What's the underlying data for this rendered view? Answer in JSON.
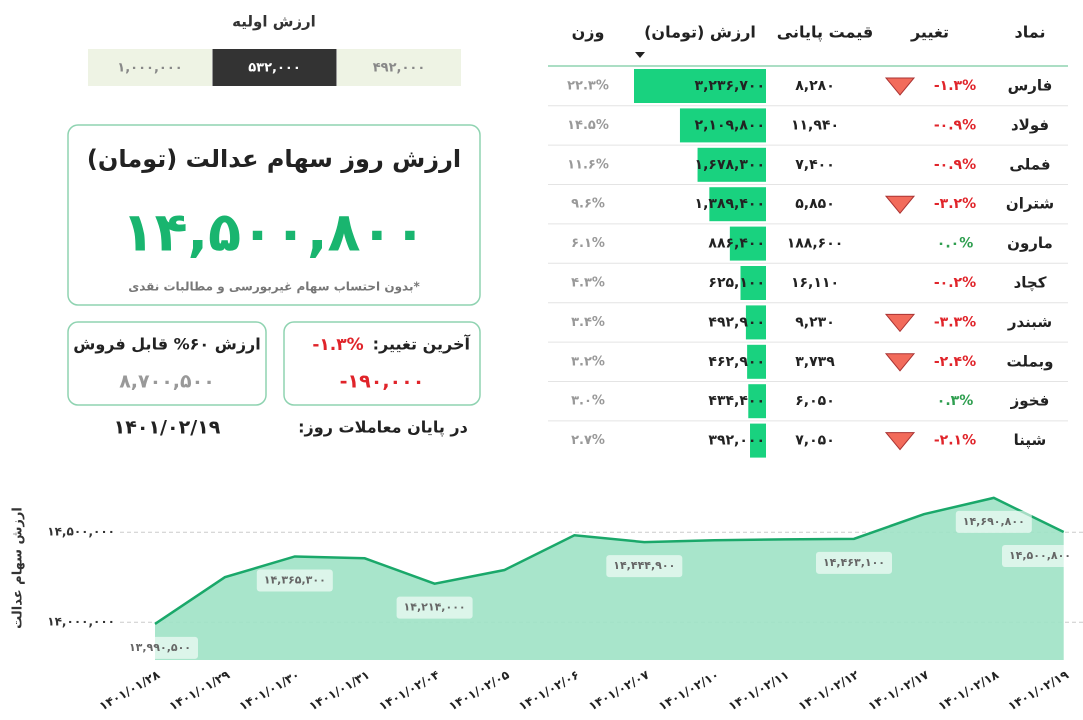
{
  "initial_value": {
    "label": "ارزش اولیه",
    "options": [
      "۱,۰۰۰,۰۰۰",
      "۵۳۲,۰۰۰",
      "۴۹۲,۰۰۰"
    ],
    "selected": 1
  },
  "summary": {
    "title": "ارزش روز سهام عدالت (تومان)",
    "value": "۱۴,۵۰۰,۸۰۰",
    "note": "*بدون احتساب سهام غیربورسی و مطالبات نقدی"
  },
  "last_change": {
    "label": "آخرین تغییر:",
    "percent": "-۱.۳%",
    "amount": "-۱۹۰,۰۰۰"
  },
  "sellable": {
    "label": "ارزش ۶۰% قابل فروش",
    "value": "۸,۷۰۰,۵۰۰"
  },
  "end_of_day": {
    "label": "در پایان معاملات روز:",
    "date": "۱۴۰۱/۰۲/۱۹"
  },
  "table": {
    "headers": [
      "نماد",
      "تغییر",
      "قیمت پایانی",
      "ارزش (تومان)",
      "وزن"
    ],
    "rows": [
      {
        "symbol": "فارس",
        "change": "-۱.۳%",
        "change_color": "#e0242a",
        "arrow": true,
        "price": "۸,۲۸۰",
        "value": 3236700,
        "value_label": "۳,۲۳۶,۷۰۰",
        "weight": "۲۲.۳%"
      },
      {
        "symbol": "فولاد",
        "change": "-۰.۹%",
        "change_color": "#e0242a",
        "arrow": false,
        "price": "۱۱,۹۴۰",
        "value": 2109800,
        "value_label": "۲,۱۰۹,۸۰۰",
        "weight": "۱۴.۵%"
      },
      {
        "symbol": "فملی",
        "change": "-۰.۹%",
        "change_color": "#e0242a",
        "arrow": false,
        "price": "۷,۴۰۰",
        "value": 1678300,
        "value_label": "۱,۶۷۸,۳۰۰",
        "weight": "۱۱.۶%"
      },
      {
        "symbol": "شتران",
        "change": "-۳.۲%",
        "change_color": "#e0242a",
        "arrow": true,
        "price": "۵,۸۵۰",
        "value": 1389400,
        "value_label": "۱,۳۸۹,۴۰۰",
        "weight": "۹.۶%"
      },
      {
        "symbol": "مارون",
        "change": "۰.۰%",
        "change_color": "#2e9e4f",
        "arrow": false,
        "price": "۱۸۸,۶۰۰",
        "value": 886400,
        "value_label": "۸۸۶,۴۰۰",
        "weight": "۶.۱%"
      },
      {
        "symbol": "کچاد",
        "change": "-۰.۲%",
        "change_color": "#e0242a",
        "arrow": false,
        "price": "۱۶,۱۱۰",
        "value": 625100,
        "value_label": "۶۲۵,۱۰۰",
        "weight": "۴.۳%"
      },
      {
        "symbol": "شبندر",
        "change": "-۳.۳%",
        "change_color": "#e0242a",
        "arrow": true,
        "price": "۹,۲۳۰",
        "value": 492900,
        "value_label": "۴۹۲,۹۰۰",
        "weight": "۳.۴%"
      },
      {
        "symbol": "وبملت",
        "change": "-۲.۴%",
        "change_color": "#e0242a",
        "arrow": true,
        "price": "۳,۷۳۹",
        "value": 462900,
        "value_label": "۴۶۲,۹۰۰",
        "weight": "۳.۲%"
      },
      {
        "symbol": "فخوز",
        "change": "۰.۳%",
        "change_color": "#2e9e4f",
        "arrow": false,
        "price": "۶,۰۵۰",
        "value": 434400,
        "value_label": "۴۳۴,۴۰۰",
        "weight": "۳.۰%"
      },
      {
        "symbol": "شپنا",
        "change": "-۲.۱%",
        "change_color": "#e0242a",
        "arrow": true,
        "price": "۷,۰۵۰",
        "value": 392000,
        "value_label": "۳۹۲,۰۰۰",
        "weight": "۲.۷%"
      }
    ],
    "bar_color": "#19d27f"
  },
  "chart_data": {
    "type": "area",
    "y_label": "ارزش سهام عدالت",
    "categories": [
      "۱۴۰۱/۰۱/۲۸",
      "۱۴۰۱/۰۱/۲۹",
      "۱۴۰۱/۰۱/۳۰",
      "۱۴۰۱/۰۱/۳۱",
      "۱۴۰۱/۰۲/۰۴",
      "۱۴۰۱/۰۲/۰۵",
      "۱۴۰۱/۰۲/۰۶",
      "۱۴۰۱/۰۲/۰۷",
      "۱۴۰۱/۰۲/۱۰",
      "۱۴۰۱/۰۲/۱۱",
      "۱۴۰۱/۰۲/۱۲",
      "۱۴۰۱/۰۲/۱۷",
      "۱۴۰۱/۰۲/۱۸",
      "۱۴۰۱/۰۲/۱۹"
    ],
    "values": [
      13990500,
      14250000,
      14365300,
      14355000,
      14214000,
      14290000,
      14483000,
      14444900,
      14455000,
      14460000,
      14463100,
      14600000,
      14690800,
      14500800
    ],
    "value_labels": [
      "۱۳,۹۹۰,۵۰۰",
      null,
      "۱۴,۳۶۵,۳۰۰",
      null,
      "۱۴,۲۱۴,۰۰۰",
      null,
      null,
      "۱۴,۴۴۴,۹۰۰",
      null,
      null,
      "۱۴,۴۶۳,۱۰۰",
      null,
      "۱۴,۶۹۰,۸۰۰",
      "۱۴,۵۰۰,۸۰۰"
    ],
    "color": "#1aa86a",
    "fill": "#9fe2c5",
    "ylim": [
      13790000,
      14790000
    ],
    "yticks": [
      {
        "value": 14000000,
        "label": "۱۴,۰۰۰,۰۰۰"
      },
      {
        "value": 14500000,
        "label": "۱۴,۵۰۰,۰۰۰"
      }
    ],
    "grid": true
  }
}
